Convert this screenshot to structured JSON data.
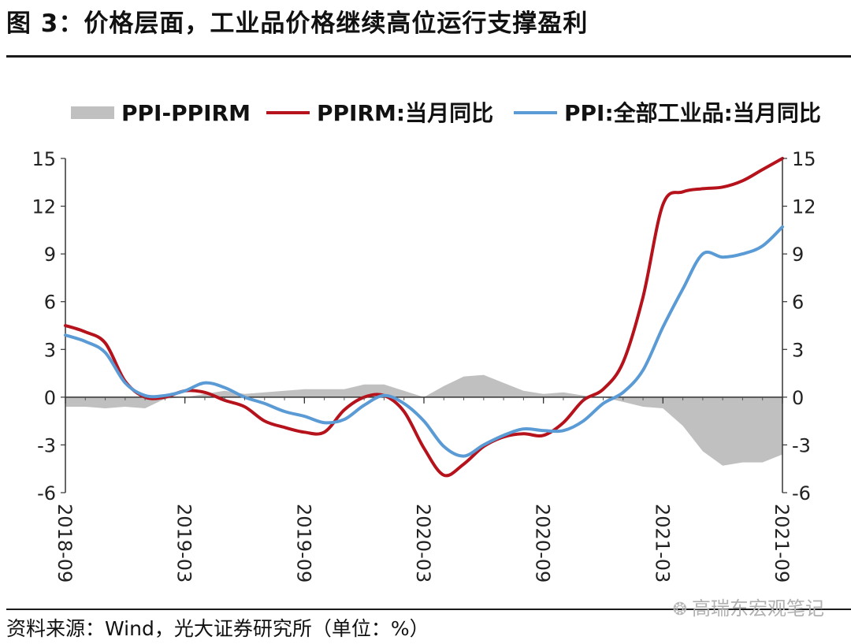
{
  "figure": {
    "title": "图 3：价格层面，工业品价格继续高位运行支撑盈利",
    "source": "资料来源：Wind，光大证券研究所（单位：%）",
    "watermark": "高瑞东宏观笔记",
    "watermark_icon": "wechat-icon"
  },
  "chart_data": {
    "type": "line",
    "legend_position": "top",
    "grid": false,
    "title": "",
    "xlabel": "",
    "ylabel": "",
    "ylim": [
      -6,
      15
    ],
    "yticks": [
      15,
      12,
      9,
      6,
      3,
      0,
      -3,
      -6
    ],
    "ytick_labels": [
      "15",
      "12",
      "9",
      "6",
      "3",
      "0",
      "-3",
      "-6"
    ],
    "x_tick_labels": [
      "2018-09",
      "2019-03",
      "2019-09",
      "2020-03",
      "2020-09",
      "2021-03",
      "2021-09"
    ],
    "x": [
      "2018-09",
      "2018-10",
      "2018-11",
      "2018-12",
      "2019-01",
      "2019-02",
      "2019-03",
      "2019-04",
      "2019-05",
      "2019-06",
      "2019-07",
      "2019-08",
      "2019-09",
      "2019-10",
      "2019-11",
      "2019-12",
      "2020-01",
      "2020-02",
      "2020-03",
      "2020-04",
      "2020-05",
      "2020-06",
      "2020-07",
      "2020-08",
      "2020-09",
      "2020-10",
      "2020-11",
      "2020-12",
      "2021-01",
      "2021-02",
      "2021-03",
      "2021-04",
      "2021-05",
      "2021-06",
      "2021-07",
      "2021-08",
      "2021-09"
    ],
    "series": [
      {
        "name": "PPI-PPIRM",
        "type": "area",
        "color": "#c0c0c0",
        "values": [
          -0.6,
          -0.6,
          -0.7,
          -0.6,
          -0.7,
          -0.1,
          0.0,
          0.2,
          0.4,
          0.2,
          0.3,
          0.4,
          0.5,
          0.5,
          0.5,
          0.8,
          0.8,
          0.4,
          0.0,
          0.7,
          1.3,
          1.4,
          0.9,
          0.4,
          0.2,
          0.3,
          0.1,
          0.0,
          -0.3,
          -0.6,
          -0.7,
          -1.8,
          -3.4,
          -4.3,
          -4.1,
          -4.1,
          -3.6
        ]
      },
      {
        "name": "PPIRM:当月同比",
        "type": "line",
        "color": "#b5121b",
        "values": [
          4.5,
          4.1,
          3.4,
          1.0,
          0.0,
          0.0,
          0.4,
          0.3,
          -0.2,
          -0.6,
          -1.5,
          -1.9,
          -2.2,
          -2.2,
          -0.8,
          0.0,
          0.1,
          -0.9,
          -3.2,
          -4.9,
          -4.2,
          -3.1,
          -2.5,
          -2.3,
          -2.4,
          -1.6,
          -0.2,
          0.5,
          2.2,
          6.3,
          12.1,
          12.9,
          13.1,
          13.2,
          13.6,
          14.3,
          15.0
        ]
      },
      {
        "name": "PPI:全部工业品:当月同比",
        "type": "line",
        "color": "#5b9bd5",
        "values": [
          3.9,
          3.5,
          2.8,
          0.9,
          0.1,
          0.1,
          0.4,
          0.9,
          0.6,
          0.0,
          -0.4,
          -0.9,
          -1.2,
          -1.6,
          -1.4,
          -0.5,
          0.1,
          -0.4,
          -1.5,
          -3.1,
          -3.7,
          -3.0,
          -2.4,
          -2.0,
          -2.1,
          -2.1,
          -1.5,
          -0.4,
          0.3,
          1.7,
          4.4,
          6.8,
          9.0,
          8.8,
          9.0,
          9.5,
          10.7
        ]
      }
    ]
  }
}
